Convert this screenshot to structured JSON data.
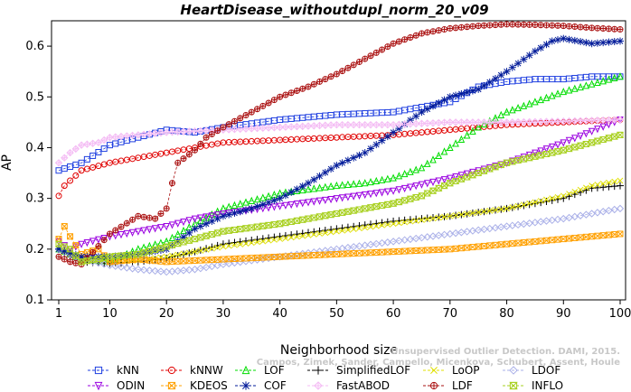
{
  "chart_data": {
    "type": "line",
    "title": "HeartDisease_withoutdupl_norm_20_v09",
    "xlabel": "Neighborhood size",
    "ylabel": "AP",
    "xlim": [
      1,
      100
    ],
    "ylim": [
      0.1,
      0.65
    ],
    "xticks": [
      1,
      10,
      20,
      30,
      40,
      50,
      60,
      70,
      80,
      90,
      100
    ],
    "yticks": [
      0.1,
      0.2,
      0.3,
      0.4,
      0.5,
      0.6
    ],
    "grid": false,
    "legend_position": "bottom",
    "watermark": [
      "Campos, Zimek, Sander, Campello, Micenkova, Schubert, Assent, Houle",
      "Unsupervised Outlier Detection. DAMI, 2015."
    ],
    "series": [
      {
        "name": "kNN",
        "color": "#1f3fe0",
        "marker": "square",
        "x": [
          1,
          5,
          10,
          15,
          20,
          25,
          30,
          40,
          50,
          60,
          70,
          75,
          80,
          85,
          90,
          95,
          100
        ],
        "y": [
          0.355,
          0.37,
          0.405,
          0.42,
          0.435,
          0.43,
          0.44,
          0.455,
          0.465,
          0.47,
          0.49,
          0.52,
          0.53,
          0.535,
          0.535,
          0.54,
          0.54
        ]
      },
      {
        "name": "kNNW",
        "color": "#e00000",
        "marker": "circle",
        "x": [
          1,
          2,
          5,
          10,
          15,
          20,
          25,
          30,
          40,
          50,
          60,
          70,
          80,
          90,
          100
        ],
        "y": [
          0.305,
          0.325,
          0.355,
          0.37,
          0.38,
          0.39,
          0.4,
          0.41,
          0.415,
          0.42,
          0.425,
          0.435,
          0.445,
          0.45,
          0.455
        ]
      },
      {
        "name": "LOF",
        "color": "#00dd00",
        "marker": "triangle",
        "x": [
          1,
          5,
          10,
          15,
          20,
          25,
          30,
          40,
          50,
          55,
          60,
          65,
          70,
          75,
          80,
          85,
          90,
          95,
          100
        ],
        "y": [
          0.2,
          0.18,
          0.175,
          0.2,
          0.215,
          0.25,
          0.28,
          0.31,
          0.325,
          0.33,
          0.34,
          0.36,
          0.4,
          0.44,
          0.47,
          0.49,
          0.51,
          0.525,
          0.54
        ]
      },
      {
        "name": "SimplifiedLOF",
        "color": "#000000",
        "marker": "plus",
        "x": [
          1,
          3,
          5,
          10,
          15,
          20,
          25,
          30,
          40,
          50,
          60,
          70,
          80,
          90,
          95,
          100
        ],
        "y": [
          0.2,
          0.185,
          0.175,
          0.172,
          0.175,
          0.182,
          0.195,
          0.21,
          0.225,
          0.24,
          0.255,
          0.265,
          0.28,
          0.3,
          0.32,
          0.325
        ]
      },
      {
        "name": "LoOP",
        "color": "#e0e000",
        "marker": "cross",
        "x": [
          1,
          5,
          10,
          15,
          20,
          25,
          30,
          40,
          50,
          60,
          70,
          80,
          90,
          95,
          100
        ],
        "y": [
          0.2,
          0.18,
          0.175,
          0.178,
          0.185,
          0.195,
          0.205,
          0.22,
          0.235,
          0.25,
          0.265,
          0.28,
          0.305,
          0.325,
          0.335
        ]
      },
      {
        "name": "LDOF",
        "color": "#aab0e8",
        "marker": "diamond",
        "x": [
          1,
          5,
          10,
          15,
          20,
          25,
          30,
          40,
          50,
          60,
          70,
          80,
          90,
          100
        ],
        "y": [
          0.2,
          0.18,
          0.168,
          0.16,
          0.155,
          0.16,
          0.17,
          0.185,
          0.2,
          0.215,
          0.23,
          0.245,
          0.26,
          0.28
        ]
      },
      {
        "name": "ODIN",
        "color": "#9a00e0",
        "marker": "triangle-down",
        "x": [
          1,
          3,
          5,
          10,
          15,
          20,
          25,
          30,
          40,
          50,
          60,
          70,
          80,
          90,
          100
        ],
        "y": [
          0.215,
          0.2,
          0.21,
          0.225,
          0.235,
          0.245,
          0.26,
          0.27,
          0.285,
          0.3,
          0.315,
          0.34,
          0.37,
          0.41,
          0.455
        ]
      },
      {
        "name": "KDEOS",
        "color": "#ffa000",
        "marker": "square-x",
        "x": [
          1,
          2,
          3,
          5,
          8,
          10,
          15,
          20,
          30,
          40,
          50,
          60,
          70,
          80,
          90,
          100
        ],
        "y": [
          0.22,
          0.245,
          0.225,
          0.19,
          0.2,
          0.175,
          0.18,
          0.175,
          0.18,
          0.185,
          0.19,
          0.195,
          0.2,
          0.21,
          0.22,
          0.23
        ]
      },
      {
        "name": "COF",
        "color": "#001a99",
        "marker": "star",
        "x": [
          1,
          5,
          10,
          15,
          20,
          25,
          30,
          35,
          40,
          45,
          50,
          55,
          60,
          65,
          70,
          75,
          80,
          85,
          88,
          90,
          95,
          100
        ],
        "y": [
          0.2,
          0.185,
          0.185,
          0.19,
          0.2,
          0.24,
          0.265,
          0.28,
          0.3,
          0.33,
          0.365,
          0.39,
          0.43,
          0.47,
          0.5,
          0.515,
          0.55,
          0.59,
          0.61,
          0.615,
          0.605,
          0.61
        ]
      },
      {
        "name": "FastABOD",
        "color": "#f4bcf4",
        "marker": "diamond-plus",
        "x": [
          1,
          3,
          5,
          8,
          10,
          15,
          20,
          30,
          40,
          50,
          60,
          70,
          80,
          90,
          100
        ],
        "y": [
          0.37,
          0.39,
          0.405,
          0.41,
          0.42,
          0.425,
          0.43,
          0.435,
          0.44,
          0.445,
          0.445,
          0.45,
          0.45,
          0.452,
          0.455
        ]
      },
      {
        "name": "LDF",
        "color": "#aa1010",
        "marker": "circle-plus",
        "x": [
          1,
          3,
          5,
          10,
          15,
          18,
          20,
          21,
          22,
          25,
          27,
          30,
          35,
          40,
          45,
          50,
          55,
          60,
          65,
          70,
          75,
          80,
          85,
          90,
          95,
          100
        ],
        "y": [
          0.185,
          0.175,
          0.17,
          0.23,
          0.265,
          0.26,
          0.28,
          0.33,
          0.37,
          0.395,
          0.42,
          0.44,
          0.47,
          0.5,
          0.52,
          0.545,
          0.575,
          0.605,
          0.625,
          0.635,
          0.64,
          0.643,
          0.642,
          0.64,
          0.636,
          0.633
        ]
      },
      {
        "name": "INFLO",
        "color": "#a8d020",
        "marker": "hourglass",
        "x": [
          1,
          3,
          5,
          10,
          15,
          20,
          25,
          30,
          40,
          50,
          60,
          65,
          70,
          80,
          90,
          100
        ],
        "y": [
          0.21,
          0.2,
          0.175,
          0.185,
          0.19,
          0.205,
          0.22,
          0.235,
          0.25,
          0.27,
          0.29,
          0.305,
          0.33,
          0.37,
          0.395,
          0.425
        ]
      }
    ]
  }
}
